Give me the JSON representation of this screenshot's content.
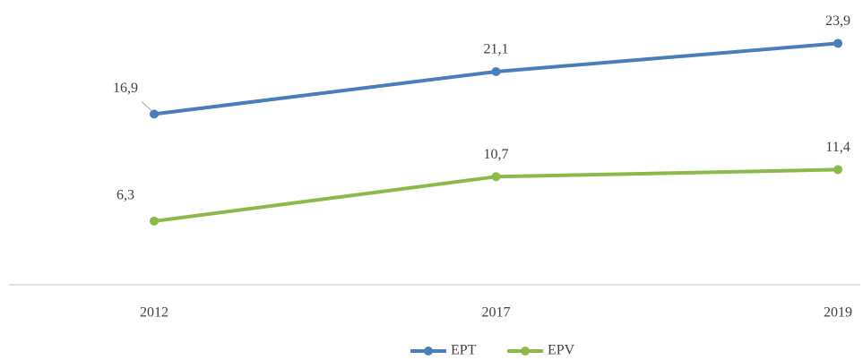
{
  "chart_data": {
    "type": "line",
    "categories": [
      "2012",
      "2017",
      "2019"
    ],
    "series": [
      {
        "name": "EPT",
        "color": "#4a7ebb",
        "values": [
          16.9,
          21.1,
          23.9
        ],
        "value_labels": [
          "16,9",
          "21,1",
          "23,9"
        ]
      },
      {
        "name": "EPV",
        "color": "#8cb94a",
        "values": [
          6.3,
          10.7,
          11.4
        ],
        "value_labels": [
          "6,3",
          "10,7",
          "11,4"
        ]
      }
    ],
    "ylim": [
      0,
      25
    ],
    "legend": "bottom"
  }
}
